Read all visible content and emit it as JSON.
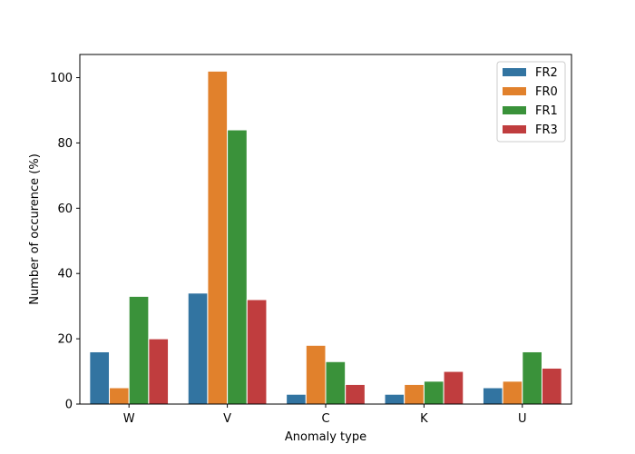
{
  "chart_data": {
    "type": "bar",
    "categories": [
      "W",
      "V",
      "C",
      "K",
      "U"
    ],
    "series": [
      {
        "name": "FR2",
        "color": "#3274a1",
        "values": [
          16,
          34,
          3,
          3,
          5
        ]
      },
      {
        "name": "FR0",
        "color": "#e1812c",
        "values": [
          5,
          102,
          18,
          6,
          7
        ]
      },
      {
        "name": "FR1",
        "color": "#3a923a",
        "values": [
          33,
          84,
          13,
          7,
          16
        ]
      },
      {
        "name": "FR3",
        "color": "#c03d3e",
        "values": [
          20,
          32,
          6,
          10,
          11
        ]
      }
    ],
    "xlabel": "Anomaly type",
    "ylabel": "Number of  occurence (%)",
    "ylim": [
      0,
      107.1
    ],
    "yticks": [
      0,
      20,
      40,
      60,
      80,
      100
    ],
    "grid": false,
    "legend_position": "top-right"
  }
}
